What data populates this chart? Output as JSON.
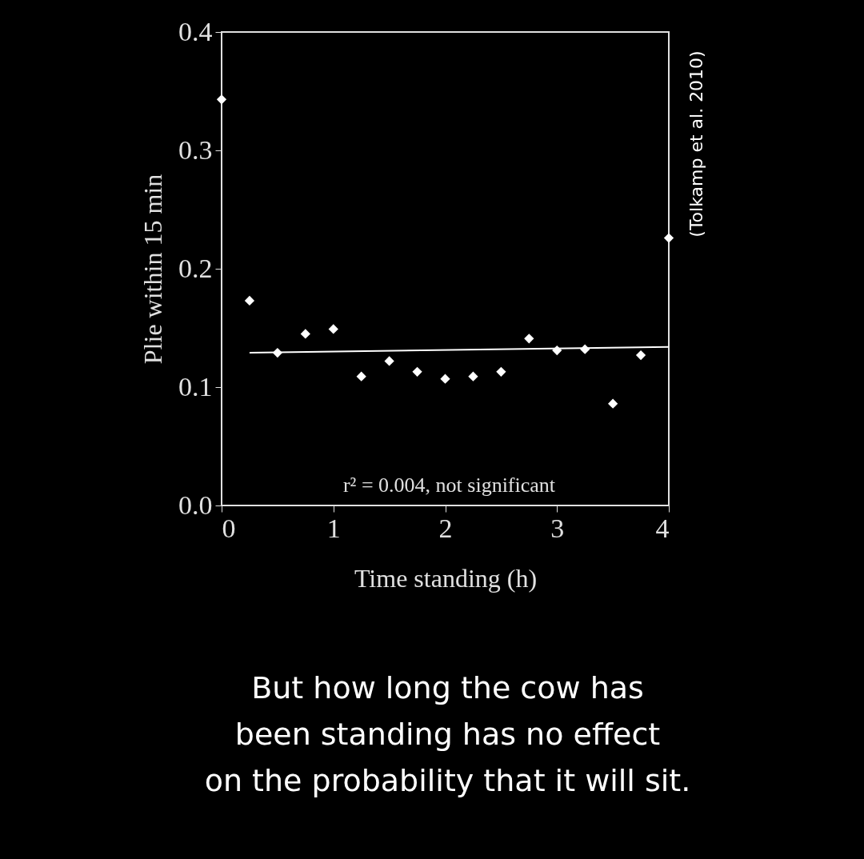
{
  "chart_data": {
    "type": "scatter",
    "xlabel": "Time standing (h)",
    "ylabel": "Plie within 15 min",
    "xlim": [
      0,
      4
    ],
    "xticks": [
      0,
      1,
      2,
      3,
      4
    ],
    "ylim": [
      0,
      0.4
    ],
    "yticks": [
      {
        "value": 0,
        "label": "0.0"
      },
      0.1,
      0.2,
      0.3,
      0.4
    ],
    "marker": "diamond",
    "series": [
      {
        "color": "#ffffff",
        "x": [
          0
        ],
        "values": [
          0.343
        ]
      },
      {
        "color": "#ffffff",
        "x": [
          0.25,
          0.5,
          0.75,
          1.0,
          1.25,
          1.5,
          1.75,
          2.0,
          2.25,
          2.5,
          2.75,
          3.0,
          3.25,
          3.5,
          3.75,
          4.0
        ],
        "values": [
          0.173,
          0.129,
          0.145,
          0.149,
          0.109,
          0.122,
          0.113,
          0.107,
          0.109,
          0.113,
          0.141,
          0.131,
          0.132,
          0.086,
          0.127,
          0.226
        ]
      },
      {
        "type": "line",
        "color": "#ffffff",
        "marker": "none",
        "line_style": "solid",
        "x": [
          0.25,
          4.0
        ],
        "values": [
          0.129,
          0.134
        ]
      }
    ],
    "annotations": [
      "r² = 0.004, not significant",
      "(Tolkamp et al. 2010)",
      "But how long the cow has\nbeen standing has no effect\non the probability that it will sit."
    ]
  }
}
